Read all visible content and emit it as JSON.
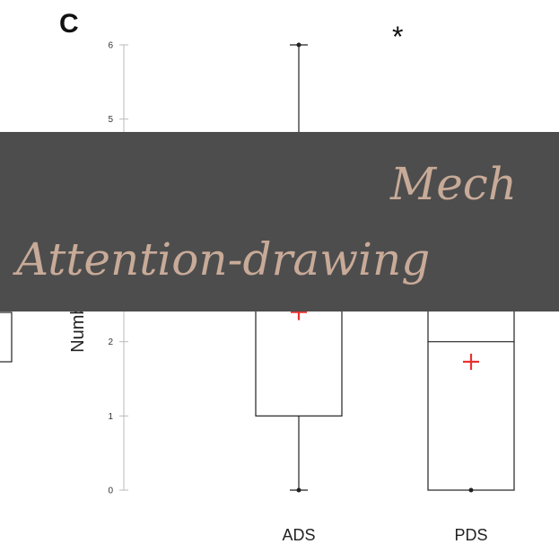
{
  "panel_label": "C",
  "significance": "*",
  "banner": {
    "line1": "Mech",
    "line2": "Attention-drawing"
  },
  "chart_data": {
    "type": "box",
    "ylabel": "Numbe ts",
    "ylim": [
      0,
      6
    ],
    "yticks": [
      0,
      1,
      2,
      5,
      6
    ],
    "categories": [
      "ADS",
      "PDS"
    ],
    "boxes": [
      {
        "name": "ADS",
        "min": 0,
        "q1": 1,
        "whisker_high": 6,
        "mean": 2.4
      },
      {
        "name": "PDS",
        "min": 0,
        "q1": 0,
        "median": 2,
        "mean": 1.73
      }
    ],
    "annotation": "*",
    "colors": {
      "box": "#222222",
      "mean_marker": "#e8322e"
    }
  }
}
